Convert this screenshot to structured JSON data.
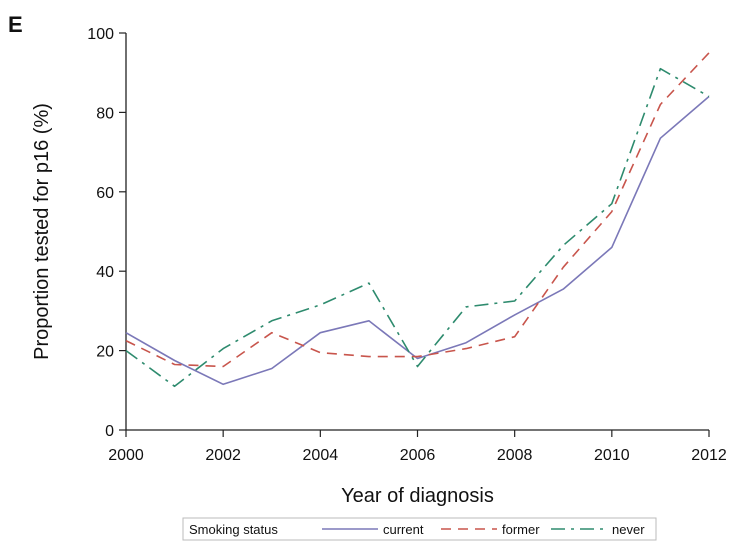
{
  "panel_label": "E",
  "chart_data": {
    "type": "line",
    "title": "",
    "xlabel": "Year of diagnosis",
    "ylabel": "Proportion tested for p16 (%)",
    "xlim": [
      2000,
      2012
    ],
    "ylim": [
      0,
      100
    ],
    "xticks": [
      2000,
      2002,
      2004,
      2006,
      2008,
      2010,
      2012
    ],
    "yticks": [
      0,
      20,
      40,
      60,
      80,
      100
    ],
    "grid": false,
    "legend": {
      "title": "Smoking status",
      "placement": "bottom"
    },
    "x": [
      2000,
      2001,
      2002,
      2003,
      2004,
      2005,
      2006,
      2007,
      2008,
      2009,
      2010,
      2011,
      2012
    ],
    "series": [
      {
        "name": "current",
        "color": "#7b78b8",
        "dash": "solid",
        "values": [
          24.5,
          17.5,
          11.5,
          15.5,
          24.5,
          27.5,
          18.0,
          22.0,
          29.0,
          35.5,
          46.0,
          73.5,
          84.0
        ]
      },
      {
        "name": "former",
        "color": "#c8554c",
        "dash": "dash",
        "values": [
          22.5,
          16.5,
          16.0,
          24.5,
          19.5,
          18.5,
          18.5,
          20.5,
          23.5,
          41.0,
          55.0,
          82.0,
          95.0
        ]
      },
      {
        "name": "never",
        "color": "#2e8b6e",
        "dash": "dashdot",
        "values": [
          20.0,
          11.0,
          20.5,
          27.5,
          31.5,
          37.0,
          16.0,
          31.0,
          32.5,
          46.5,
          57.0,
          91.0,
          84.0
        ]
      }
    ]
  }
}
